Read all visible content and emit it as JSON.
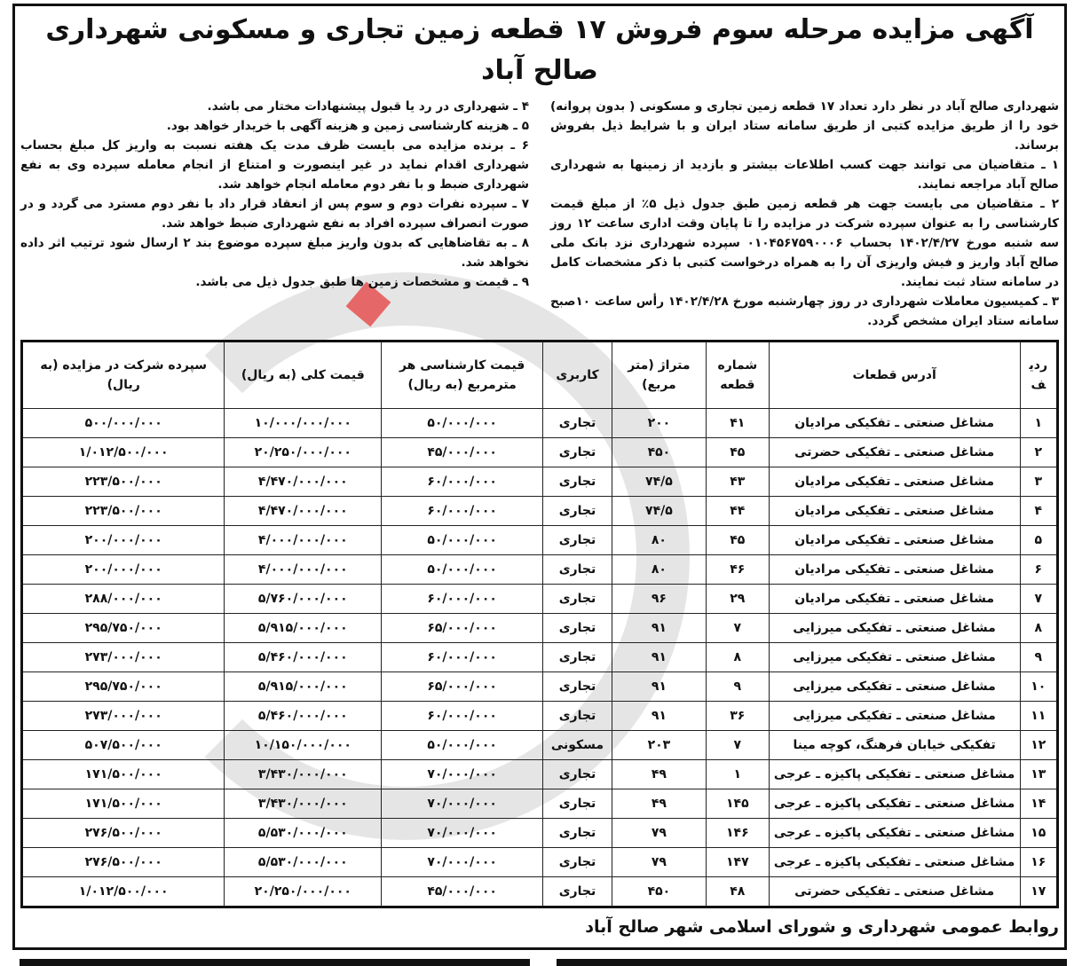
{
  "title": "آگهی مزایده  مرحله سوم  فروش ۱۷ قطعه زمین تجاری و مسکونی شهرداری صالح آباد",
  "intro": "شهرداری صالح آباد در نظر دارد تعداد ۱۷ قطعه زمین تجاری و مسکونی ( بدون پروانه) خود را از طریق مزایده کتبی از طریق سامانه ستاد ایران و با شرایط ذیل بفروش برساند.",
  "conditions": [
    "۱ ـ متقاضیان می توانند جهت کسب اطلاعات بیشتر و بازدید از زمینها به شهرداری صالح آباد مراجعه نمایند.",
    "۲ ـ متقاضیان می بایست جهت هر قطعه زمین طبق جدول ذیل ۵٪ از مبلغ قیمت کارشناسی را به عنوان سپرده شرکت در مزایده را تا پایان وقت اداری ساعت ۱۲ روز سه شنبه مورخ ۱۴۰۲/۴/۲۷ بحساب ۰۱۰۴۵۶۷۵۹۰۰۰۶ سپرده شهرداری نزد بانک ملی صالح آباد واریز و فیش واریزی آن را به همراه درخواست کتبی با ذکر مشخصات کامل در سامانه ستاد ثبت نمایند.",
    "۳ ـ کمیسیون معاملات شهرداری در روز چهارشنبه مورخ ۱۴۰۲/۴/۲۸ رأس ساعت ۱۰صبح سامانه ستاد ایران مشخص گردد.",
    "۴ ـ شهرداری در رد یا قبول پیشنهادات مختار می باشد.",
    "۵ ـ هزینه کارشناسی زمین و هزینه آگهی با خریدار خواهد بود.",
    "۶ ـ برنده مزایده می بایست ظرف مدت یک هفته نسبت به واریز کل مبلغ بحساب شهرداری اقدام نماید در غیر اینصورت و امتناع از انجام معامله سپرده وی به نفع شهرداری ضبط و با نفر دوم معامله انجام خواهد شد.",
    "۷ ـ سپرده نفرات دوم و سوم پس از انعقاد قرار داد با نفر دوم مسترد می گردد و در صورت انصراف سپرده افراد به نفع شهرداری ضبط خواهد شد.",
    "۸ ـ به تقاضاهایی که بدون واریز مبلغ سپرده موضوع بند ۲ ارسال شود ترتیب اثر داده نخواهد شد.",
    "۹ ـ قیمت و مشخصات زمین ها طبق جدول ذیل می باشد."
  ],
  "table": {
    "headers": [
      "ردیف",
      "آدرس قطعات",
      "شماره قطعه",
      "متراژ (متر مربع)",
      "کاربری",
      "قیمت کارشناسی هر مترمربع (به ریال)",
      "قیمت کلی (به ریال)",
      "سپرده شرکت در مزایده (به ریال)"
    ],
    "rows": [
      [
        "۱",
        "مشاغل صنعتی ـ تفکیکی مرادیان",
        "۴۱",
        "۲۰۰",
        "تجاری",
        "۵۰/۰۰۰/۰۰۰",
        "۱۰/۰۰۰/۰۰۰/۰۰۰",
        "۵۰۰/۰۰۰/۰۰۰"
      ],
      [
        "۲",
        "مشاغل صنعتی ـ تفکیکی حضرتی",
        "۴۵",
        "۴۵۰",
        "تجاری",
        "۴۵/۰۰۰/۰۰۰",
        "۲۰/۲۵۰/۰۰۰/۰۰۰",
        "۱/۰۱۲/۵۰۰/۰۰۰"
      ],
      [
        "۳",
        "مشاغل صنعتی ـ تفکیکی مرادیان",
        "۴۳",
        "۷۴/۵",
        "تجاری",
        "۶۰/۰۰۰/۰۰۰",
        "۴/۴۷۰/۰۰۰/۰۰۰",
        "۲۲۳/۵۰۰/۰۰۰"
      ],
      [
        "۴",
        "مشاغل صنعتی ـ تفکیکی مرادیان",
        "۴۴",
        "۷۴/۵",
        "تجاری",
        "۶۰/۰۰۰/۰۰۰",
        "۴/۴۷۰/۰۰۰/۰۰۰",
        "۲۲۳/۵۰۰/۰۰۰"
      ],
      [
        "۵",
        "مشاغل صنعتی ـ تفکیکی مرادیان",
        "۴۵",
        "۸۰",
        "تجاری",
        "۵۰/۰۰۰/۰۰۰",
        "۴/۰۰۰/۰۰۰/۰۰۰",
        "۲۰۰/۰۰۰/۰۰۰"
      ],
      [
        "۶",
        "مشاغل صنعتی ـ تفکیکی مرادیان",
        "۴۶",
        "۸۰",
        "تجاری",
        "۵۰/۰۰۰/۰۰۰",
        "۴/۰۰۰/۰۰۰/۰۰۰",
        "۲۰۰/۰۰۰/۰۰۰"
      ],
      [
        "۷",
        "مشاغل صنعتی ـ تفکیکی مرادیان",
        "۲۹",
        "۹۶",
        "تجاری",
        "۶۰/۰۰۰/۰۰۰",
        "۵/۷۶۰/۰۰۰/۰۰۰",
        "۲۸۸/۰۰۰/۰۰۰"
      ],
      [
        "۸",
        "مشاغل صنعتی ـ تفکیکی میرزایی",
        "۷",
        "۹۱",
        "تجاری",
        "۶۵/۰۰۰/۰۰۰",
        "۵/۹۱۵/۰۰۰/۰۰۰",
        "۲۹۵/۷۵۰/۰۰۰"
      ],
      [
        "۹",
        "مشاغل صنعتی ـ تفکیکی میرزایی",
        "۸",
        "۹۱",
        "تجاری",
        "۶۰/۰۰۰/۰۰۰",
        "۵/۴۶۰/۰۰۰/۰۰۰",
        "۲۷۳/۰۰۰/۰۰۰"
      ],
      [
        "۱۰",
        "مشاغل صنعتی ـ تفکیکی میرزایی",
        "۹",
        "۹۱",
        "تجاری",
        "۶۵/۰۰۰/۰۰۰",
        "۵/۹۱۵/۰۰۰/۰۰۰",
        "۲۹۵/۷۵۰/۰۰۰"
      ],
      [
        "۱۱",
        "مشاغل صنعتی ـ تفکیکی میرزایی",
        "۳۶",
        "۹۱",
        "تجاری",
        "۶۰/۰۰۰/۰۰۰",
        "۵/۴۶۰/۰۰۰/۰۰۰",
        "۲۷۳/۰۰۰/۰۰۰"
      ],
      [
        "۱۲",
        "تفکیکی خیابان فرهنگ، کوچه مینا",
        "۷",
        "۲۰۳",
        "مسکونی",
        "۵۰/۰۰۰/۰۰۰",
        "۱۰/۱۵۰/۰۰۰/۰۰۰",
        "۵۰۷/۵۰۰/۰۰۰"
      ],
      [
        "۱۳",
        "مشاغل صنعتی ـ تفکیکی پاکیزه ـ عرجی",
        "۱",
        "۴۹",
        "تجاری",
        "۷۰/۰۰۰/۰۰۰",
        "۳/۴۳۰/۰۰۰/۰۰۰",
        "۱۷۱/۵۰۰/۰۰۰"
      ],
      [
        "۱۴",
        "مشاغل صنعتی ـ تفکیکی پاکیزه ـ عرجی",
        "۱۴۵",
        "۴۹",
        "تجاری",
        "۷۰/۰۰۰/۰۰۰",
        "۳/۴۳۰/۰۰۰/۰۰۰",
        "۱۷۱/۵۰۰/۰۰۰"
      ],
      [
        "۱۵",
        "مشاغل صنعتی ـ تفکیکی پاکیزه ـ عرجی",
        "۱۴۶",
        "۷۹",
        "تجاری",
        "۷۰/۰۰۰/۰۰۰",
        "۵/۵۳۰/۰۰۰/۰۰۰",
        "۲۷۶/۵۰۰/۰۰۰"
      ],
      [
        "۱۶",
        "مشاغل صنعتی ـ تفکیکی پاکیزه ـ عرجی",
        "۱۴۷",
        "۷۹",
        "تجاری",
        "۷۰/۰۰۰/۰۰۰",
        "۵/۵۳۰/۰۰۰/۰۰۰",
        "۲۷۶/۵۰۰/۰۰۰"
      ],
      [
        "۱۷",
        "مشاغل صنعتی ـ تفکیکی حضرتی",
        "۴۸",
        "۴۵۰",
        "تجاری",
        "۴۵/۰۰۰/۰۰۰",
        "۲۰/۲۵۰/۰۰۰/۰۰۰",
        "۱/۰۱۲/۵۰۰/۰۰۰"
      ]
    ]
  },
  "footer": "روابط عمومی شهرداری و شورای اسلامی شهر صالح آباد",
  "colors": {
    "ink": "#111111",
    "watermark": "#a0a0a0",
    "watermark_accent": "#e63c3c"
  }
}
